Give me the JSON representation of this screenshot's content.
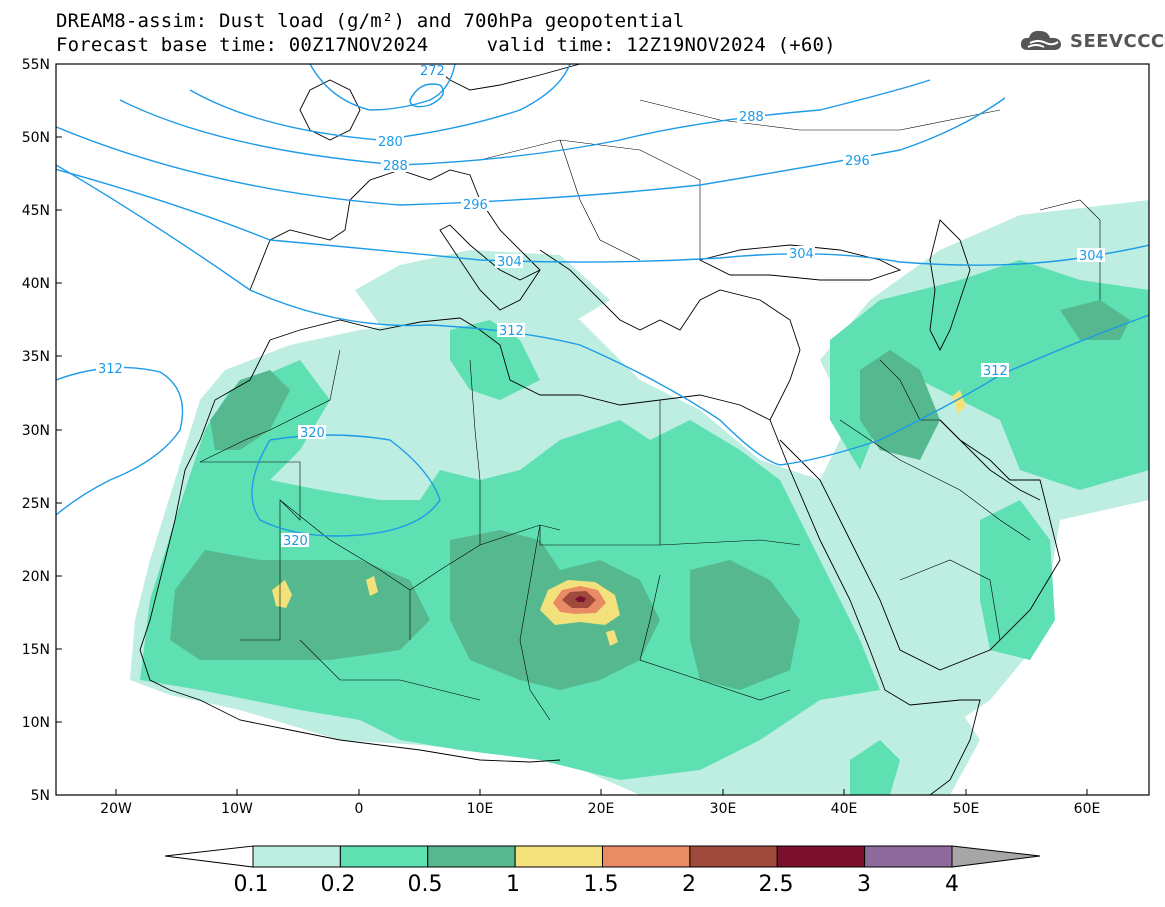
{
  "title": {
    "line1": "DREAM8-assim: Dust load (g/m²) and 700hPa geopotential",
    "line2": "Forecast base time: 00Z17NOV2024     valid time: 12Z19NOV2024 (+60)"
  },
  "logo": {
    "text": "SEEVCCC",
    "icon": "cloud-icon"
  },
  "map": {
    "lat_labels": [
      "55N",
      "50N",
      "45N",
      "40N",
      "35N",
      "30N",
      "25N",
      "20N",
      "15N",
      "10N",
      "5N"
    ],
    "lon_labels": [
      "20W",
      "10W",
      "0",
      "10E",
      "20E",
      "30E",
      "40E",
      "50E",
      "60E"
    ],
    "contour_labels": [
      {
        "text": "272",
        "id": "c272"
      },
      {
        "text": "280",
        "id": "c280"
      },
      {
        "text": "288",
        "id": "c288a"
      },
      {
        "text": "288",
        "id": "c288b"
      },
      {
        "text": "296",
        "id": "c296a"
      },
      {
        "text": "296",
        "id": "c296b"
      },
      {
        "text": "304",
        "id": "c304a"
      },
      {
        "text": "304",
        "id": "c304b"
      },
      {
        "text": "304",
        "id": "c304c"
      },
      {
        "text": "312",
        "id": "c312a"
      },
      {
        "text": "312",
        "id": "c312b"
      },
      {
        "text": "312",
        "id": "c312c"
      },
      {
        "text": "320",
        "id": "c320a"
      },
      {
        "text": "320",
        "id": "c320b"
      }
    ]
  },
  "legend": {
    "colors": [
      "#bdeee1",
      "#5ee0b2",
      "#55b88f",
      "#f3e27c",
      "#e98c66",
      "#a0493d",
      "#7b0f2e",
      "#8e6a9c"
    ],
    "ticks": [
      "0.1",
      "0.2",
      "0.5",
      "1",
      "1.5",
      "2",
      "2.5",
      "3",
      "4"
    ],
    "under_color": "#ffffff",
    "over_color": "#a6a6a6"
  },
  "colors": {
    "contour": "#1e9be8",
    "border": "#000000"
  }
}
